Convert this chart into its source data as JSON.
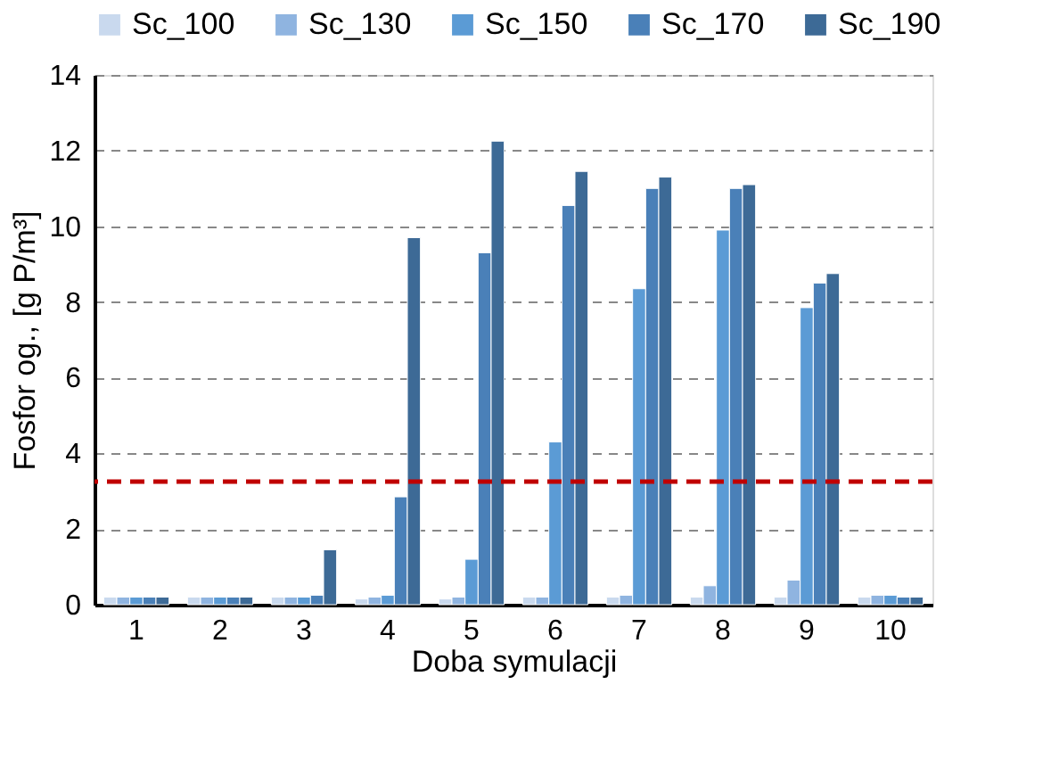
{
  "chart_data": {
    "type": "bar",
    "xlabel": "Doba symulacji",
    "ylabel": "Fosfor og., [g P/m³]",
    "categories": [
      "1",
      "2",
      "3",
      "4",
      "5",
      "6",
      "7",
      "8",
      "9",
      "10"
    ],
    "series": [
      {
        "name": "Sc_100",
        "color": "#c9d9ee",
        "values": [
          0.2,
          0.2,
          0.2,
          0.15,
          0.15,
          0.2,
          0.2,
          0.2,
          0.2,
          0.2
        ]
      },
      {
        "name": "Sc_130",
        "color": "#8fb4e0",
        "values": [
          0.2,
          0.2,
          0.2,
          0.2,
          0.2,
          0.2,
          0.25,
          0.5,
          0.65,
          0.25
        ]
      },
      {
        "name": "Sc_150",
        "color": "#5b9bd5",
        "values": [
          0.2,
          0.2,
          0.2,
          0.25,
          1.2,
          4.3,
          8.35,
          9.9,
          7.85,
          0.25
        ]
      },
      {
        "name": "Sc_170",
        "color": "#4a80b8",
        "values": [
          0.2,
          0.2,
          0.25,
          2.85,
          9.3,
          10.55,
          11.0,
          11.0,
          8.5,
          0.2
        ]
      },
      {
        "name": "Sc_190",
        "color": "#3d6a96",
        "values": [
          0.2,
          0.2,
          1.45,
          9.7,
          12.25,
          11.45,
          11.3,
          11.1,
          8.75,
          0.2
        ]
      }
    ],
    "ylim": [
      0,
      14
    ],
    "yticks": [
      0,
      2,
      4,
      6,
      8,
      10,
      12,
      14
    ],
    "grid": "y",
    "legend": "top",
    "ref_lines": [
      {
        "axis": "y",
        "value": 3.25,
        "color": "#c00000",
        "line_style": "dashed"
      }
    ]
  }
}
